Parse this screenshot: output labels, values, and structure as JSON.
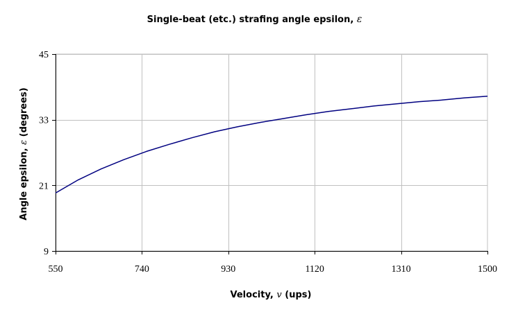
{
  "chart_data": {
    "type": "line",
    "title": "Single-beat (etc.) strafing angle epsilon,",
    "title_symbol": "ε",
    "xlabel": "Velocity,",
    "xlabel_symbol": "v",
    "xlabel_unit": "(ups)",
    "ylabel": "Angle epsilon,",
    "ylabel_symbol": "ε",
    "ylabel_unit": "(degrees)",
    "xlim": [
      550,
      1500
    ],
    "ylim": [
      9,
      45
    ],
    "xticks": [
      550,
      740,
      930,
      1120,
      1310,
      1500
    ],
    "yticks": [
      9,
      21,
      33,
      45
    ],
    "grid": true,
    "line_color": "#000080",
    "series": [
      {
        "x": [
          550,
          600,
          650,
          700,
          750,
          800,
          850,
          900,
          950,
          1000,
          1050,
          1100,
          1150,
          1200,
          1250,
          1300,
          1350,
          1400,
          1450,
          1500
        ],
        "y": [
          19.6,
          22.0,
          24.0,
          25.7,
          27.2,
          28.5,
          29.7,
          30.8,
          31.7,
          32.5,
          33.2,
          33.9,
          34.5,
          35.0,
          35.5,
          35.9,
          36.3,
          36.6,
          37.0,
          37.3
        ]
      }
    ]
  }
}
